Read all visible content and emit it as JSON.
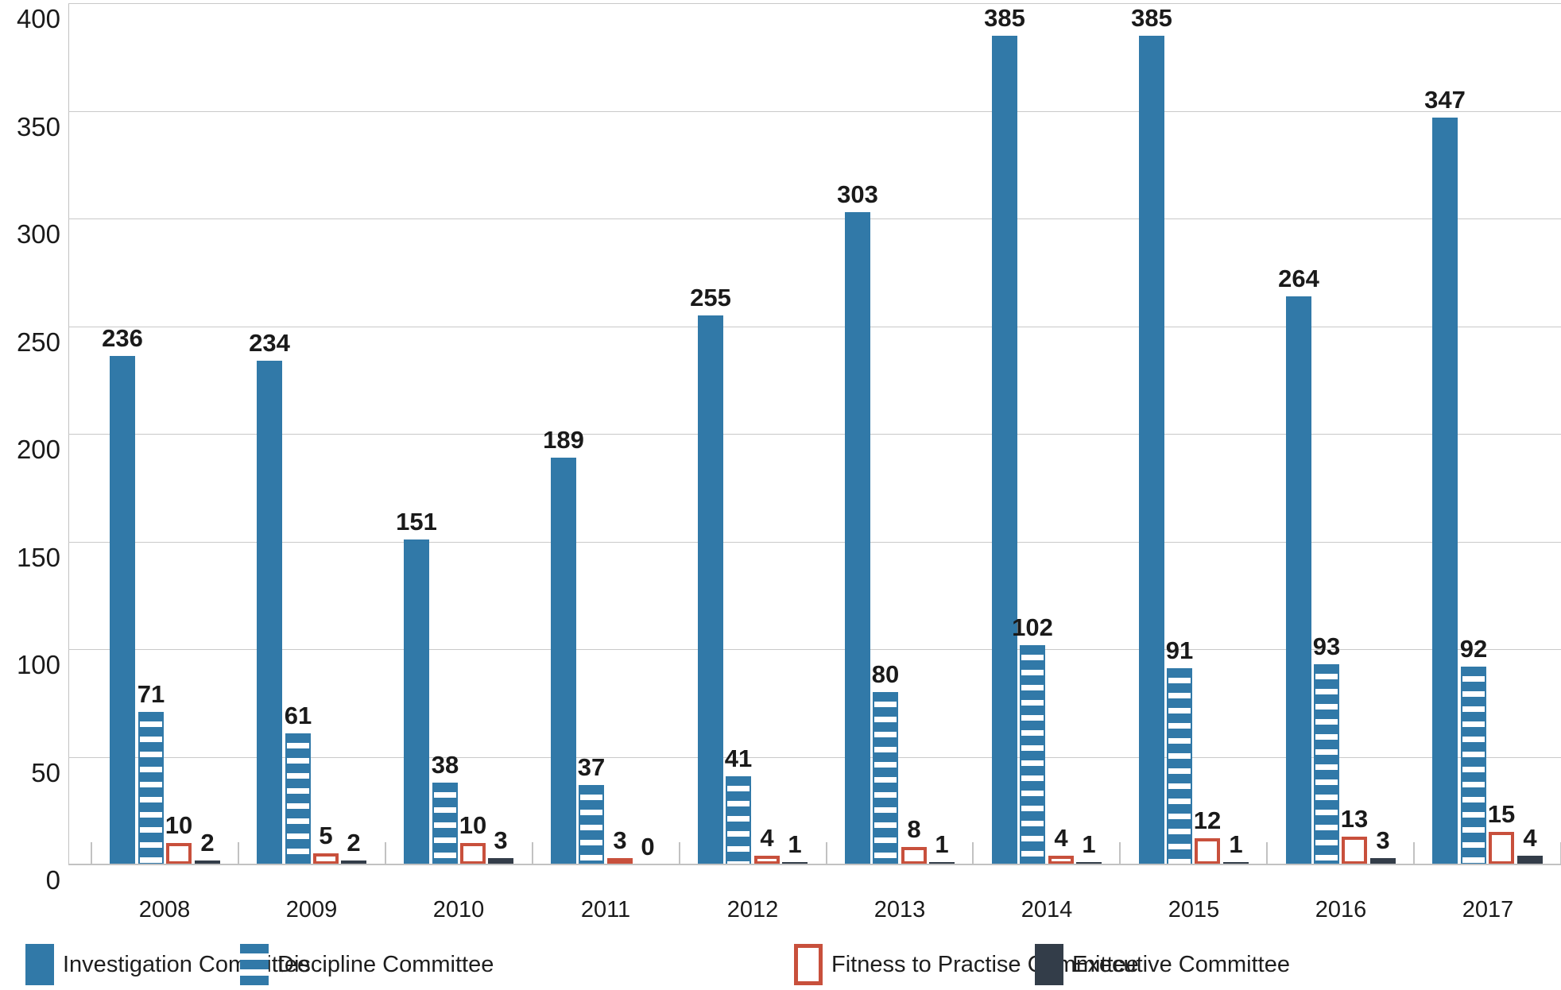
{
  "chart_data": {
    "type": "bar",
    "title": "",
    "xlabel": "",
    "ylabel": "",
    "categories": [
      "2008",
      "2009",
      "2010",
      "2011",
      "2012",
      "2013",
      "2014",
      "2015",
      "2016",
      "2017"
    ],
    "series": [
      {
        "name": "Investigation Committee",
        "style": "solid-blue",
        "values": [
          236,
          234,
          151,
          189,
          255,
          303,
          385,
          385,
          264,
          347
        ]
      },
      {
        "name": "Discipline Committee",
        "style": "striped-blue",
        "values": [
          71,
          61,
          38,
          37,
          41,
          80,
          102,
          91,
          93,
          92
        ]
      },
      {
        "name": "Fitness to Practise Committee",
        "style": "outlined-red",
        "values": [
          10,
          5,
          10,
          3,
          4,
          8,
          4,
          12,
          13,
          15
        ]
      },
      {
        "name": "Executive Committee",
        "style": "solid-dark",
        "values": [
          2,
          2,
          3,
          0,
          1,
          1,
          1,
          1,
          3,
          4
        ]
      }
    ],
    "ylim": [
      0,
      400
    ],
    "yticks": [
      0,
      50,
      100,
      150,
      200,
      250,
      300,
      350,
      400
    ],
    "grid": true,
    "data_labels": true,
    "legend_position": "bottom",
    "colors": {
      "investigation": "#3179a8",
      "discipline_stripe": "#3179a8",
      "fitness_outline": "#c8503c",
      "executive": "#333d49",
      "gridline": "#c9c9c9",
      "axis": "#c2c2c2",
      "text": "#1a1a1a"
    }
  },
  "legend": {
    "items": [
      {
        "label": "Investigation Committee"
      },
      {
        "label": "Discipline Committee"
      },
      {
        "label": "Fitness to Practise Committee"
      },
      {
        "label": "Executive Committee"
      }
    ]
  }
}
